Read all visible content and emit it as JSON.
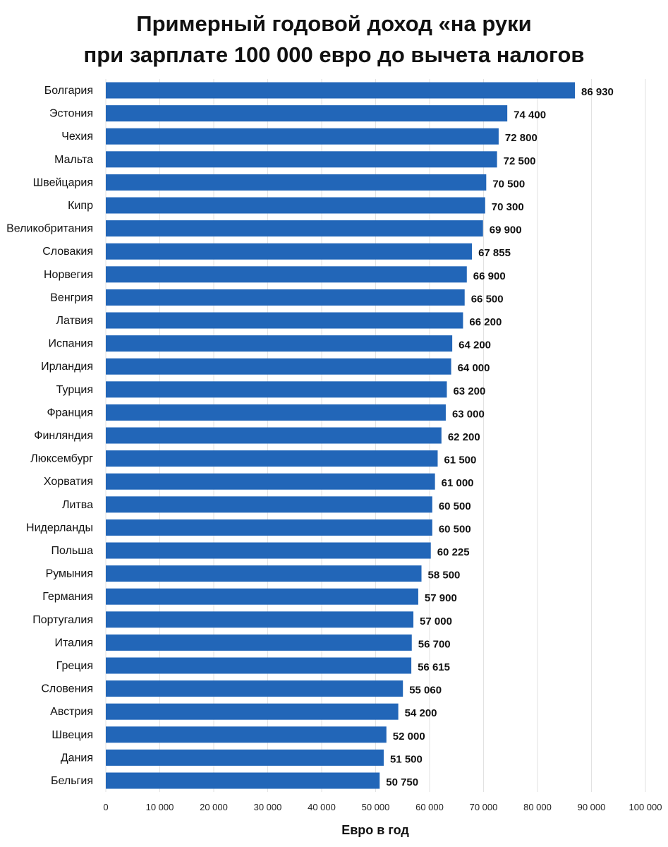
{
  "chart_data": {
    "type": "bar",
    "orientation": "horizontal",
    "title_lines": [
      "Примерный годовой доход «на руки",
      "при зарплате 100 000 евро до вычета налогов"
    ],
    "xlabel": "Евро в год",
    "ylabel": "",
    "xlim": [
      0,
      100000
    ],
    "ticks": [
      0,
      10000,
      20000,
      30000,
      40000,
      50000,
      60000,
      70000,
      80000,
      90000,
      100000
    ],
    "tick_labels": [
      "0",
      "10 000",
      "20 000",
      "30 000",
      "40 000",
      "50 000",
      "60 000",
      "70 000",
      "80 000",
      "90 000",
      "100 000"
    ],
    "grid": "vertical",
    "bar_color": "#2266B8",
    "categories": [
      "Болгария",
      "Эстония",
      "Чехия",
      "Мальта",
      "Швейцария",
      "Кипр",
      "Великобритания",
      "Словакия",
      "Норвегия",
      "Венгрия",
      "Латвия",
      "Испания",
      "Ирландия",
      "Турция",
      "Франция",
      "Финляндия",
      "Люксембург",
      "Хорватия",
      "Литва",
      "Нидерланды",
      "Польша",
      "Румыния",
      "Германия",
      "Португалия",
      "Италия",
      "Греция",
      "Словения",
      "Австрия",
      "Швеция",
      "Дания",
      "Бельгия"
    ],
    "values": [
      86930,
      74400,
      72800,
      72500,
      70500,
      70300,
      69900,
      67855,
      66900,
      66500,
      66200,
      64200,
      64000,
      63200,
      63000,
      62200,
      61500,
      61000,
      60500,
      60500,
      60225,
      58500,
      57900,
      57000,
      56700,
      56615,
      55060,
      54200,
      52000,
      51500,
      50750
    ],
    "value_labels": [
      "86 930",
      "74 400",
      "72 800",
      "72 500",
      "70 500",
      "70 300",
      "69 900",
      "67 855",
      "66 900",
      "66 500",
      "66 200",
      "64 200",
      "64 000",
      "63 200",
      "63 000",
      "62 200",
      "61 500",
      "61 000",
      "60 500",
      "60 500",
      "60 225",
      "58 500",
      "57 900",
      "57 000",
      "56 700",
      "56 615",
      "55 060",
      "54 200",
      "52 000",
      "51 500",
      "50 750"
    ]
  }
}
